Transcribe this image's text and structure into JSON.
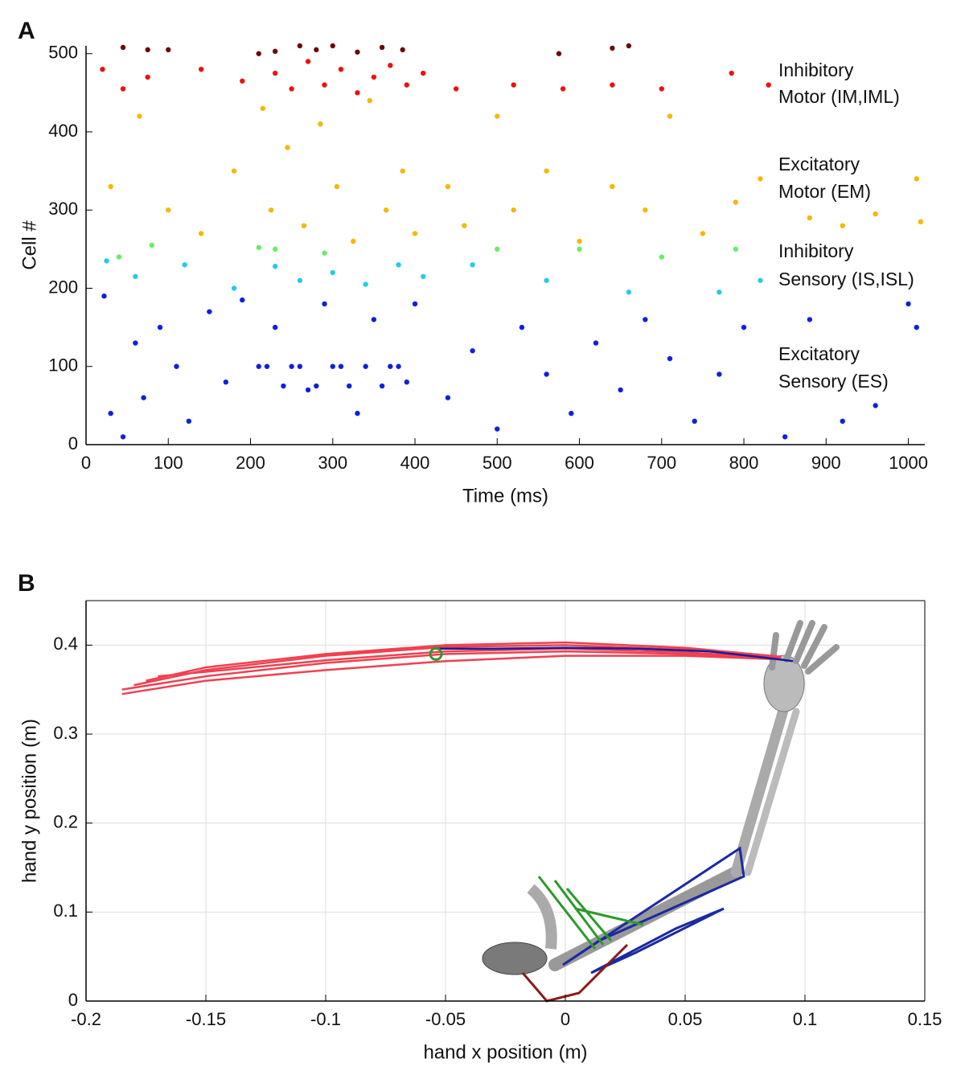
{
  "chart_data": [
    {
      "type": "scatter",
      "panel_label": "A",
      "x_label": "Time (ms)",
      "y_label": "Cell #",
      "xlim": [
        0,
        1020
      ],
      "ylim": [
        0,
        510
      ],
      "xticks": [
        0,
        100,
        200,
        300,
        400,
        500,
        600,
        700,
        800,
        900,
        1000
      ],
      "yticks": [
        0,
        100,
        200,
        300,
        400,
        500
      ],
      "annotations": [
        "Inhibitory",
        "Motor (IM,IML)",
        "Excitatory",
        "Motor (EM)",
        "Inhibitory",
        "Sensory (IS,ISL)",
        "Excitatory",
        "Sensory (ES)"
      ],
      "series": [
        {
          "color": "#1020e0",
          "x": [
            22,
            30,
            45,
            60,
            70,
            90,
            110,
            125,
            150,
            170,
            190,
            210,
            230,
            250,
            270,
            290,
            310,
            330,
            350,
            370,
            390,
            400,
            440,
            470,
            500,
            530,
            560,
            590,
            620,
            650,
            680,
            710,
            740,
            770,
            800,
            850,
            880,
            920,
            960,
            1000,
            1010,
            220,
            260,
            300,
            340,
            380,
            240,
            280,
            320,
            360
          ],
          "values": [
            190,
            40,
            10,
            130,
            60,
            150,
            100,
            30,
            170,
            80,
            185,
            100,
            150,
            100,
            70,
            180,
            100,
            40,
            160,
            100,
            80,
            180,
            60,
            120,
            20,
            150,
            90,
            40,
            130,
            70,
            160,
            110,
            30,
            90,
            150,
            10,
            160,
            30,
            50,
            180,
            150,
            100,
            100,
            100,
            100,
            100,
            75,
            75,
            75,
            75
          ]
        },
        {
          "color": "#22ccee",
          "x": [
            25,
            60,
            120,
            180,
            230,
            260,
            300,
            340,
            380,
            410,
            470,
            560,
            660,
            770,
            820
          ],
          "values": [
            235,
            215,
            230,
            200,
            228,
            210,
            220,
            205,
            230,
            215,
            230,
            210,
            195,
            195,
            210
          ]
        },
        {
          "color": "#66ee66",
          "x": [
            40,
            80,
            210,
            230,
            290,
            500,
            600,
            700,
            790
          ],
          "values": [
            240,
            255,
            252,
            250,
            245,
            250,
            250,
            240,
            250
          ]
        },
        {
          "color": "#f5b800",
          "x": [
            30,
            65,
            100,
            140,
            180,
            215,
            225,
            245,
            265,
            285,
            305,
            325,
            345,
            365,
            385,
            400,
            440,
            460,
            500,
            520,
            560,
            600,
            640,
            680,
            710,
            750,
            790,
            820,
            880,
            920,
            960,
            1010,
            1015
          ],
          "values": [
            330,
            420,
            300,
            270,
            350,
            430,
            300,
            380,
            280,
            410,
            330,
            260,
            440,
            300,
            350,
            270,
            330,
            280,
            420,
            300,
            350,
            260,
            330,
            300,
            420,
            270,
            310,
            340,
            290,
            280,
            295,
            340,
            285
          ]
        },
        {
          "color": "#ee1010",
          "x": [
            20,
            45,
            75,
            140,
            190,
            230,
            250,
            270,
            290,
            310,
            330,
            350,
            370,
            390,
            410,
            450,
            520,
            580,
            640,
            700,
            785,
            830
          ],
          "values": [
            480,
            455,
            470,
            480,
            465,
            475,
            455,
            490,
            460,
            480,
            450,
            470,
            485,
            460,
            475,
            455,
            460,
            455,
            460,
            455,
            475,
            460
          ]
        },
        {
          "color": "#6b0a0a",
          "x": [
            45,
            75,
            100,
            210,
            230,
            260,
            280,
            300,
            330,
            360,
            385,
            575,
            640,
            660
          ],
          "values": [
            508,
            505,
            505,
            500,
            503,
            510,
            505,
            510,
            502,
            508,
            505,
            500,
            507,
            510
          ]
        }
      ]
    },
    {
      "type": "line",
      "panel_label": "B",
      "x_label": "hand x position (m)",
      "y_label": "hand y position (m)",
      "xlim": [
        -0.2,
        0.15
      ],
      "ylim": [
        0,
        0.45
      ],
      "grid": true,
      "xticks": [
        -0.2,
        -0.15,
        -0.1,
        -0.05,
        0,
        0.05,
        0.1,
        0.15
      ],
      "yticks": [
        0,
        0.1,
        0.2,
        0.3,
        0.4
      ],
      "target": {
        "x": -0.054,
        "y": 0.39,
        "color": "#2a9a2a"
      },
      "series": [
        {
          "color": "#f04050",
          "x": [
            -0.185,
            -0.15,
            -0.1,
            -0.05,
            0,
            0.05,
            0.09
          ],
          "values": [
            0.35,
            0.365,
            0.38,
            0.39,
            0.393,
            0.39,
            0.385
          ]
        },
        {
          "color": "#f04050",
          "x": [
            -0.18,
            -0.15,
            -0.1,
            -0.05,
            0,
            0.05,
            0.09
          ],
          "values": [
            0.355,
            0.372,
            0.388,
            0.398,
            0.4,
            0.395,
            0.386
          ]
        },
        {
          "color": "#f04050",
          "x": [
            -0.175,
            -0.15,
            -0.1,
            -0.05,
            0,
            0.05,
            0.09
          ],
          "values": [
            0.36,
            0.375,
            0.39,
            0.4,
            0.403,
            0.397,
            0.387
          ]
        },
        {
          "color": "#f04050",
          "x": [
            -0.185,
            -0.15,
            -0.1,
            -0.05,
            0,
            0.05,
            0.09
          ],
          "values": [
            0.345,
            0.36,
            0.372,
            0.382,
            0.388,
            0.388,
            0.384
          ]
        },
        {
          "color": "#f04050",
          "x": [
            -0.17,
            -0.15,
            -0.1,
            -0.05,
            0,
            0.05,
            0.09
          ],
          "values": [
            0.365,
            0.37,
            0.383,
            0.393,
            0.396,
            0.392,
            0.385
          ]
        },
        {
          "color": "#1020a0",
          "x": [
            -0.054,
            -0.03,
            0,
            0.03,
            0.06,
            0.08,
            0.095
          ],
          "values": [
            0.396,
            0.396,
            0.397,
            0.396,
            0.393,
            0.387,
            0.382
          ]
        }
      ]
    }
  ]
}
